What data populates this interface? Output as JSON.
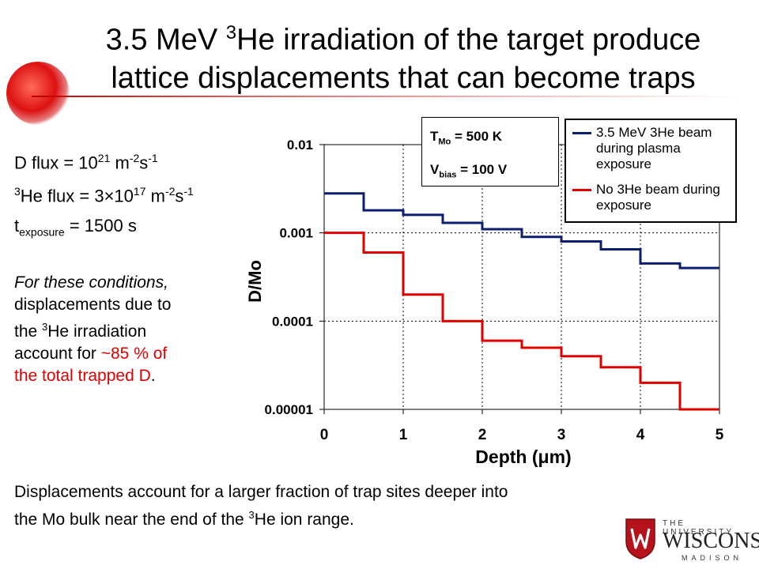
{
  "slide": {
    "title_line1_a": "3.5 MeV ",
    "title_line1_sup": "3",
    "title_line1_b": "He irradiation of the target produce",
    "title_line2": "lattice displacements that can become traps"
  },
  "params": {
    "d_flux_label": "D flux = 10",
    "d_flux_exp": "21",
    "d_flux_unit_a": " m",
    "d_flux_unit_exp1": "-2",
    "d_flux_unit_b": "s",
    "d_flux_unit_exp2": "-1",
    "he_sup": "3",
    "he_flux_label": "He flux = 3×10",
    "he_flux_exp": "17",
    "he_flux_unit_a": " m",
    "he_flux_unit_exp1": "-2",
    "he_flux_unit_b": "s",
    "he_flux_unit_exp2": "-1",
    "t_label": "t",
    "t_sub": "exposure",
    "t_value": " = 1500 s"
  },
  "note": {
    "italic": "For these conditions,",
    "line2": "displacements due to",
    "line3_a": "the ",
    "line3_sup": "3",
    "line3_b": "He irradiation",
    "line4_a": "account for ",
    "line4_red": "~85 % of",
    "line5_red": "the total trapped D",
    "line5_end": "."
  },
  "bottom": {
    "line1": "Displacements account for a larger fraction of trap sites deeper into",
    "line2_a": "the Mo bulk near the end of the ",
    "line2_sup": "3",
    "line2_b": "He ion range."
  },
  "annotation": {
    "t_label": "T",
    "t_sub": "Mo",
    "t_value": " = 500 K",
    "v_label": "V",
    "v_sub": "bias",
    "v_value": " = 100 V"
  },
  "logo": {
    "line1": "THE UNIVERSITY",
    "line2": "WISCONSIN",
    "line3": "MADISON"
  },
  "chart_data": {
    "type": "line",
    "step": true,
    "xlabel": "Depth (μm)",
    "ylabel": "D/Mo",
    "xlim": [
      0,
      5
    ],
    "ylim": [
      1e-05,
      0.01
    ],
    "yscale": "log",
    "x_ticks": [
      "0",
      "1",
      "2",
      "3",
      "4",
      "5"
    ],
    "y_ticks": [
      "0.01",
      "0.001",
      "0.0001",
      "0.00001"
    ],
    "grid": "dotted",
    "legend_position": "top-right",
    "x_edges": [
      0,
      0.5,
      1.0,
      1.5,
      2.0,
      2.5,
      3.0,
      3.5,
      4.0,
      4.5,
      5.0
    ],
    "series": [
      {
        "name": "3.5 MeV 3He beam during plasma exposure",
        "color": "#0b1f6e",
        "values": [
          0.0028,
          0.0018,
          0.0016,
          0.0013,
          0.0011,
          0.0009,
          0.0008,
          0.00065,
          0.00045,
          0.0004
        ]
      },
      {
        "name": "No 3He beam during exposure",
        "color": "#e00000",
        "values": [
          0.001,
          0.0006,
          0.0002,
          0.0001,
          6e-05,
          5e-05,
          4e-05,
          3e-05,
          2e-05,
          1e-05
        ]
      }
    ]
  }
}
